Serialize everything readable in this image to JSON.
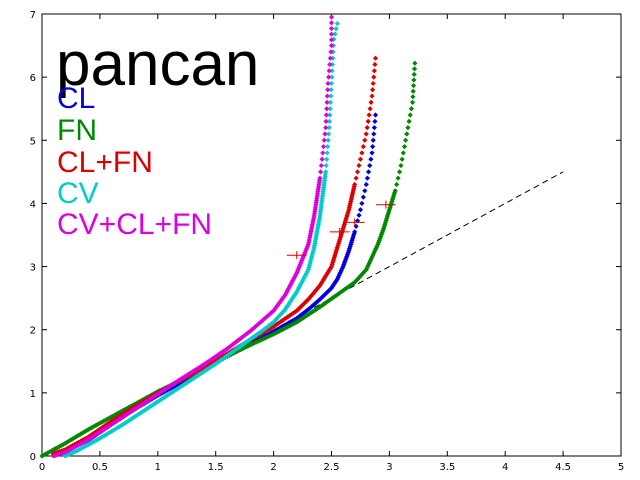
{
  "chart_data": {
    "type": "scatter",
    "title": "pancan",
    "xlabel": "",
    "ylabel": "",
    "xlim": [
      0,
      5
    ],
    "ylim": [
      0,
      7
    ],
    "xticks": [
      "0",
      "0.5",
      "1",
      "1.5",
      "2",
      "2.5",
      "3",
      "3.5",
      "4",
      "4.5",
      "5"
    ],
    "yticks": [
      "0",
      "1",
      "2",
      "3",
      "4",
      "5",
      "6",
      "7"
    ],
    "grid": false,
    "legend_position": "top-left",
    "reference_line": {
      "style": "dashed",
      "color": "#000000",
      "x": [
        0,
        4.5
      ],
      "y": [
        0,
        4.5
      ]
    },
    "series": [
      {
        "name": "CL",
        "color": "#0000dd",
        "points": [
          [
            0.1,
            0.02
          ],
          [
            0.2,
            0.08
          ],
          [
            0.4,
            0.25
          ],
          [
            0.6,
            0.5
          ],
          [
            0.8,
            0.74
          ],
          [
            1.0,
            0.96
          ],
          [
            1.2,
            1.16
          ],
          [
            1.4,
            1.38
          ],
          [
            1.6,
            1.58
          ],
          [
            1.8,
            1.78
          ],
          [
            2.0,
            1.97
          ],
          [
            2.2,
            2.18
          ],
          [
            2.3,
            2.32
          ],
          [
            2.4,
            2.48
          ],
          [
            2.5,
            2.66
          ],
          [
            2.55,
            2.8
          ],
          [
            2.6,
            3.0
          ],
          [
            2.65,
            3.25
          ],
          [
            2.7,
            3.55
          ],
          [
            2.75,
            3.9
          ],
          [
            2.8,
            4.3
          ],
          [
            2.85,
            4.8
          ],
          [
            2.88,
            5.4
          ]
        ]
      },
      {
        "name": "FN",
        "color": "#008800",
        "points": [
          [
            0.0,
            0.0
          ],
          [
            0.2,
            0.2
          ],
          [
            0.4,
            0.42
          ],
          [
            0.6,
            0.62
          ],
          [
            0.8,
            0.82
          ],
          [
            1.0,
            1.02
          ],
          [
            1.2,
            1.2
          ],
          [
            1.4,
            1.4
          ],
          [
            1.6,
            1.58
          ],
          [
            1.8,
            1.76
          ],
          [
            2.0,
            1.93
          ],
          [
            2.2,
            2.12
          ],
          [
            2.4,
            2.36
          ],
          [
            2.6,
            2.62
          ],
          [
            2.7,
            2.75
          ],
          [
            2.8,
            2.95
          ],
          [
            2.85,
            3.15
          ],
          [
            2.9,
            3.35
          ],
          [
            2.95,
            3.6
          ],
          [
            3.0,
            3.9
          ],
          [
            3.05,
            4.2
          ],
          [
            3.1,
            4.6
          ],
          [
            3.15,
            5.1
          ],
          [
            3.2,
            5.6
          ],
          [
            3.22,
            6.22
          ]
        ]
      },
      {
        "name": "CL+FN",
        "color": "#dd0000",
        "points": [
          [
            0.1,
            0.04
          ],
          [
            0.2,
            0.1
          ],
          [
            0.4,
            0.3
          ],
          [
            0.6,
            0.55
          ],
          [
            0.8,
            0.78
          ],
          [
            1.0,
            1.0
          ],
          [
            1.2,
            1.2
          ],
          [
            1.4,
            1.4
          ],
          [
            1.6,
            1.62
          ],
          [
            1.8,
            1.84
          ],
          [
            2.0,
            2.05
          ],
          [
            2.2,
            2.3
          ],
          [
            2.3,
            2.48
          ],
          [
            2.4,
            2.7
          ],
          [
            2.5,
            3.0
          ],
          [
            2.55,
            3.3
          ],
          [
            2.6,
            3.6
          ],
          [
            2.65,
            3.9
          ],
          [
            2.7,
            4.3
          ],
          [
            2.75,
            4.7
          ],
          [
            2.8,
            5.1
          ],
          [
            2.85,
            5.7
          ],
          [
            2.88,
            6.3
          ]
        ]
      },
      {
        "name": "CV",
        "color": "#00cccc",
        "points": [
          [
            0.2,
            0.0
          ],
          [
            0.3,
            0.08
          ],
          [
            0.5,
            0.28
          ],
          [
            0.7,
            0.5
          ],
          [
            0.9,
            0.74
          ],
          [
            1.1,
            0.98
          ],
          [
            1.3,
            1.22
          ],
          [
            1.5,
            1.46
          ],
          [
            1.7,
            1.72
          ],
          [
            1.9,
            1.98
          ],
          [
            2.0,
            2.12
          ],
          [
            2.1,
            2.32
          ],
          [
            2.2,
            2.6
          ],
          [
            2.3,
            2.95
          ],
          [
            2.35,
            3.3
          ],
          [
            2.4,
            3.8
          ],
          [
            2.45,
            4.5
          ],
          [
            2.48,
            5.2
          ],
          [
            2.5,
            5.9
          ],
          [
            2.52,
            6.6
          ],
          [
            2.55,
            6.85
          ]
        ]
      },
      {
        "name": "CV+CL+FN",
        "color": "#dd00dd",
        "points": [
          [
            0.1,
            0.0
          ],
          [
            0.2,
            0.06
          ],
          [
            0.4,
            0.26
          ],
          [
            0.6,
            0.5
          ],
          [
            0.8,
            0.74
          ],
          [
            1.0,
            0.98
          ],
          [
            1.2,
            1.22
          ],
          [
            1.4,
            1.45
          ],
          [
            1.6,
            1.7
          ],
          [
            1.8,
            1.98
          ],
          [
            2.0,
            2.3
          ],
          [
            2.1,
            2.55
          ],
          [
            2.2,
            2.9
          ],
          [
            2.3,
            3.35
          ],
          [
            2.35,
            3.8
          ],
          [
            2.4,
            4.4
          ],
          [
            2.45,
            5.2
          ],
          [
            2.47,
            5.9
          ],
          [
            2.5,
            6.5
          ],
          [
            2.5,
            6.95
          ]
        ]
      }
    ],
    "error_markers": [
      {
        "color": "#dd0000",
        "x": 2.2,
        "y": 3.18
      },
      {
        "color": "#dd0000",
        "x": 2.57,
        "y": 3.55
      },
      {
        "color": "#dd0000",
        "x": 2.7,
        "y": 3.7
      },
      {
        "color": "#dd0000",
        "x": 2.97,
        "y": 3.98
      }
    ]
  }
}
